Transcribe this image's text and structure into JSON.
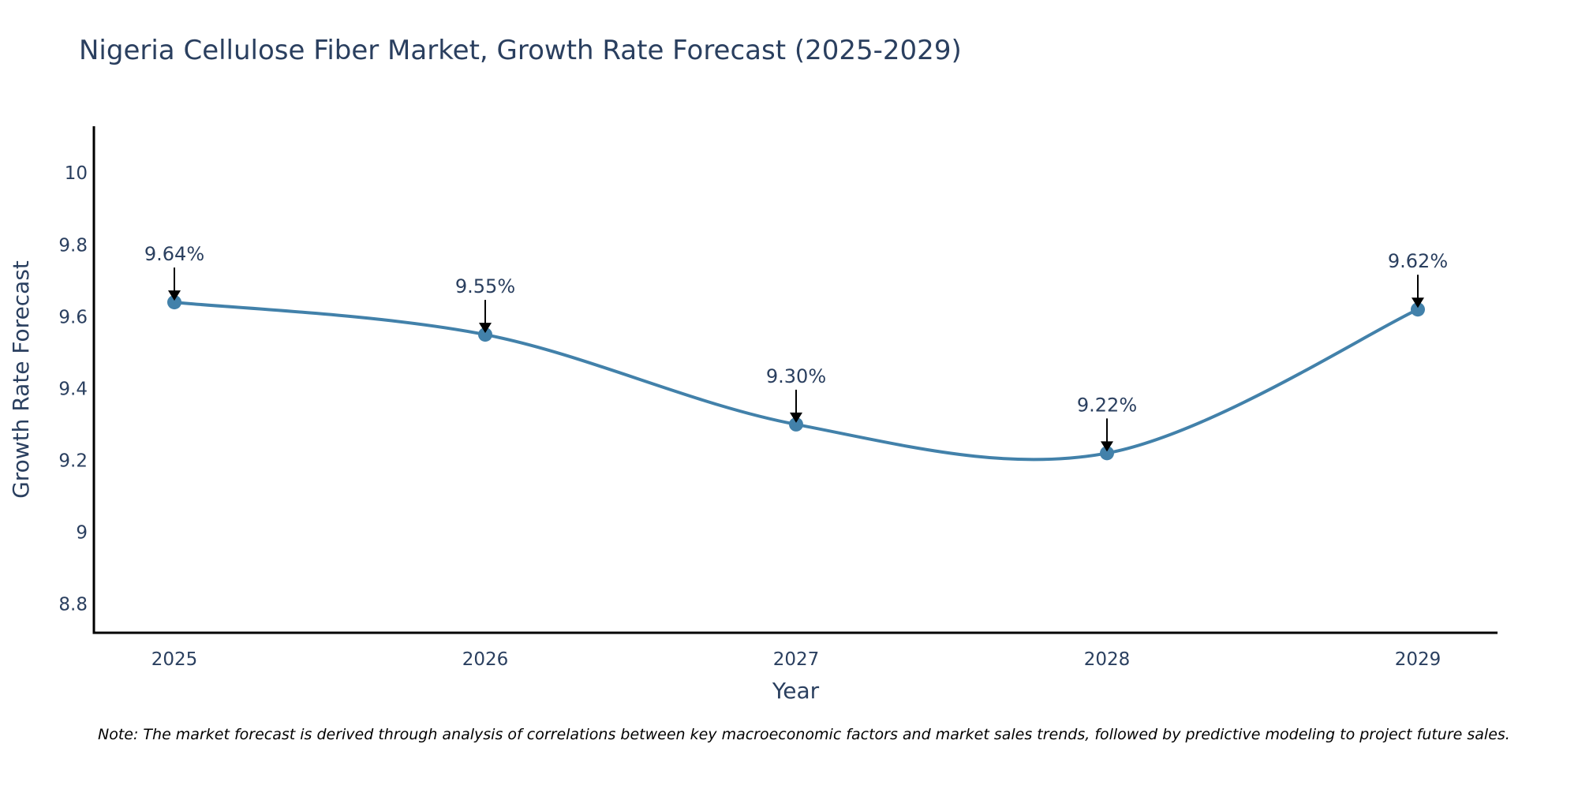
{
  "chart_data": {
    "type": "line",
    "title": "Nigeria Cellulose Fiber Market, Growth Rate Forecast (2025-2029)",
    "xlabel": "Year",
    "ylabel": "Growth Rate Forecast",
    "x": [
      "2025",
      "2026",
      "2027",
      "2028",
      "2029"
    ],
    "series": [
      {
        "name": "Growth Rate Forecast",
        "values": [
          9.64,
          9.55,
          9.3,
          9.22,
          9.62
        ],
        "labels": [
          "9.64%",
          "9.55%",
          "9.30%",
          "9.22%",
          "9.62%"
        ]
      }
    ],
    "ylim": [
      8.72,
      10.13
    ],
    "yticks": [
      8.8,
      9,
      9.2,
      9.4,
      9.6,
      9.8,
      10
    ],
    "ytick_labels": [
      "8.8",
      "9",
      "9.2",
      "9.4",
      "9.6",
      "9.8",
      "10"
    ],
    "line_color": "#4281aa",
    "grid": false,
    "line_shape": "spline"
  },
  "note": "Note: The market forecast is derived through analysis of correlations between key macroeconomic factors and market sales trends, followed by predictive modeling to project future sales."
}
